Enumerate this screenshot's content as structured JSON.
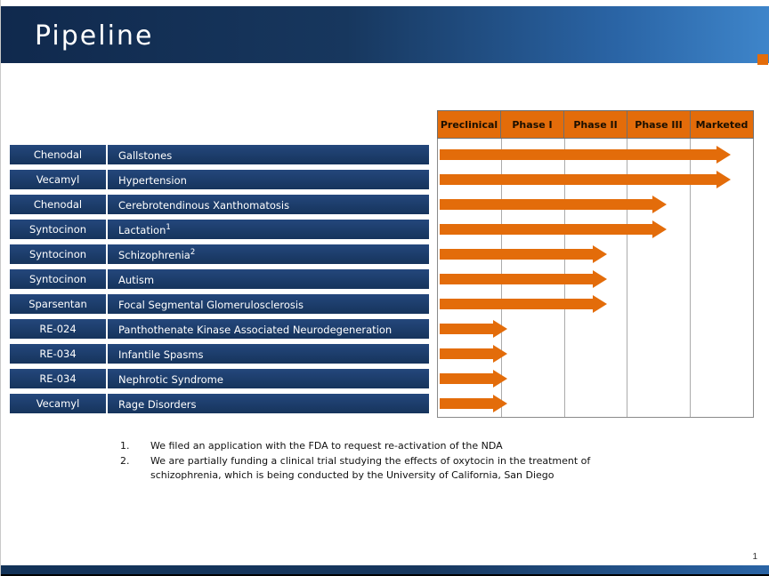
{
  "slide": {
    "title": "Pipeline",
    "page_number": "1"
  },
  "colors": {
    "navy": "#17375E",
    "orange": "#E36C0A",
    "header_blue_light": "#3E85CA"
  },
  "chart_data": {
    "type": "bar",
    "orientation": "horizontal",
    "title": "Pipeline",
    "phases": [
      "Preclinical",
      "Phase I",
      "Phase II",
      "Phase III",
      "Marketed"
    ],
    "rows": [
      {
        "drug": "Chenodal",
        "indication": "Gallstones",
        "footnote_ref": "",
        "phase": "Marketed"
      },
      {
        "drug": "Vecamyl",
        "indication": "Hypertension",
        "footnote_ref": "",
        "phase": "Marketed"
      },
      {
        "drug": "Chenodal",
        "indication": "Cerebrotendinous Xanthomatosis",
        "footnote_ref": "",
        "phase": "Phase III"
      },
      {
        "drug": "Syntocinon",
        "indication": "Lactation",
        "footnote_ref": "1",
        "phase": "Phase III"
      },
      {
        "drug": "Syntocinon",
        "indication": "Schizophrenia",
        "footnote_ref": "2",
        "phase": "Phase II"
      },
      {
        "drug": "Syntocinon",
        "indication": "Autism",
        "footnote_ref": "",
        "phase": "Phase II"
      },
      {
        "drug": "Sparsentan",
        "indication": "Focal Segmental Glomerulosclerosis",
        "footnote_ref": "",
        "phase": "Phase II"
      },
      {
        "drug": "RE-024",
        "indication": "Panthothenate Kinase Associated Neurodegeneration",
        "footnote_ref": "",
        "phase": "Preclinical"
      },
      {
        "drug": "RE-034",
        "indication": "Infantile Spasms",
        "footnote_ref": "",
        "phase": "Preclinical"
      },
      {
        "drug": "RE-034",
        "indication": "Nephrotic Syndrome",
        "footnote_ref": "",
        "phase": "Preclinical"
      },
      {
        "drug": "Vecamyl",
        "indication": "Rage Disorders",
        "footnote_ref": "",
        "phase": "Preclinical"
      }
    ],
    "footnotes": [
      {
        "number": "1.",
        "text": "We filed an application with the FDA to request re-activation of the NDA"
      },
      {
        "number": "2.",
        "text": "We are partially funding a clinical trial studying the effects of oxytocin in the treatment of schizophrenia, which is being conducted by the University of California, San Diego"
      }
    ]
  }
}
